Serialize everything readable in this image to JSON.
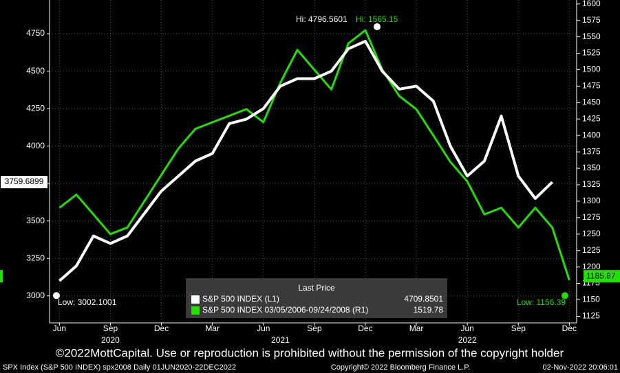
{
  "chart_data": {
    "type": "line",
    "x": [
      "2020-06",
      "2020-07",
      "2020-08",
      "2020-09",
      "2020-10",
      "2020-11",
      "2020-12",
      "2021-01",
      "2021-02",
      "2021-03",
      "2021-04",
      "2021-05",
      "2021-06",
      "2021-07",
      "2021-08",
      "2021-09",
      "2021-10",
      "2021-11",
      "2021-12",
      "2022-01",
      "2022-02",
      "2022-03",
      "2022-04",
      "2022-05",
      "2022-06",
      "2022-07",
      "2022-08",
      "2022-09",
      "2022-10",
      "2022-11",
      "2022-12"
    ],
    "xticks": [
      {
        "value": "2020-06",
        "label": "Jun"
      },
      {
        "value": "2020-09",
        "label": "Sep"
      },
      {
        "value": "2020-12",
        "label": "Dec"
      },
      {
        "value": "2021-03",
        "label": "Mar"
      },
      {
        "value": "2021-06",
        "label": "Jun"
      },
      {
        "value": "2021-09",
        "label": "Sep"
      },
      {
        "value": "2021-12",
        "label": "Dec"
      },
      {
        "value": "2022-03",
        "label": "Mar"
      },
      {
        "value": "2022-06",
        "label": "Jun"
      },
      {
        "value": "2022-09",
        "label": "Sep"
      },
      {
        "value": "2022-12",
        "label": "Dec"
      }
    ],
    "year_labels": [
      {
        "value": "2020-09",
        "label": "2020"
      },
      {
        "value": "2021-07",
        "label": "2021"
      },
      {
        "value": "2022-06",
        "label": "2022"
      }
    ],
    "series": [
      {
        "name": "S&P 500 INDEX 03/05/2006-09/24/2008 (R1)",
        "color": "#22e000",
        "axis": "y2",
        "legend_value": 1519.78,
        "values": [
          1290,
          1310,
          1280,
          1250,
          1260,
          1300,
          1340,
          1380,
          1410,
          1420,
          1430,
          1440,
          1420,
          1480,
          1530,
          1500,
          1470,
          1540,
          1560,
          1500,
          1460,
          1440,
          1400,
          1360,
          1330,
          1280,
          1290,
          1260,
          1290,
          1260,
          1180
        ]
      },
      {
        "name": "S&P 500 INDEX (L1)",
        "color": "#ffffff",
        "axis": "y",
        "legend_value": 4709.8501,
        "values": [
          3100,
          3200,
          3400,
          3350,
          3400,
          3550,
          3700,
          3800,
          3900,
          3950,
          4150,
          4180,
          4250,
          4400,
          4450,
          4450,
          4500,
          4650,
          4700,
          4500,
          4380,
          4400,
          4300,
          4000,
          3800,
          3900,
          4200,
          3800,
          3650,
          3760,
          null
        ]
      }
    ],
    "ylim": [
      2820,
      4975
    ],
    "yticks": [
      3000,
      3250,
      3500,
      3750,
      4000,
      4250,
      4500,
      4750
    ],
    "y2lim": [
      1115,
      1606
    ],
    "y2ticks": [
      1125,
      1150,
      1175,
      1200,
      1225,
      1250,
      1275,
      1300,
      1325,
      1350,
      1375,
      1400,
      1425,
      1450,
      1475,
      1500,
      1525,
      1550,
      1575,
      1600
    ],
    "grid": true,
    "legend_title": "Last Price",
    "annotations": {
      "hi_left": {
        "value": 4796.5601,
        "label": "Hi: 4796.5601"
      },
      "hi_right": {
        "value": 1565.15,
        "label": "Hi: 1565.15"
      },
      "low_left": {
        "value": 3002.1001,
        "label": "Low: 3002.1001"
      },
      "low_right": {
        "value": 1156.39,
        "label": "Low: 1156.39"
      },
      "last_left": {
        "value": 3759.6899,
        "label": "3759.6899"
      },
      "last_right": {
        "value": 1185.87,
        "label": "1185.87"
      }
    },
    "footer": "©2022MottCapital. Use or reproduction is prohibited without the permission of the copyright holder",
    "status": [
      "SPX Index (S&P 500 INDEX) spx2008  Daily 01JUN2020-22DEC2022",
      "Copyright© 2022 Bloomberg Finance L.P.",
      "02-Nov-2022 20:06:01"
    ]
  }
}
